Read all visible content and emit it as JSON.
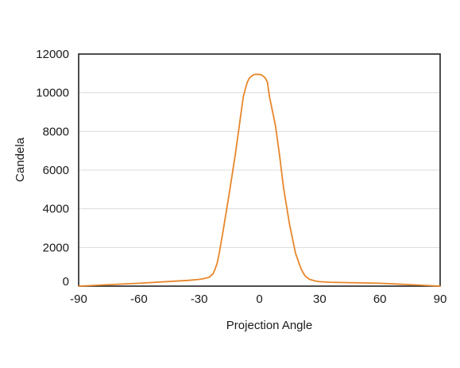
{
  "chart_data": {
    "type": "line",
    "xlabel": "Projection Angle",
    "ylabel": "Candela",
    "xlim": [
      -90,
      90
    ],
    "ylim": [
      0,
      12000
    ],
    "x_ticks": [
      -90,
      -60,
      -30,
      0,
      30,
      60,
      90
    ],
    "y_ticks": [
      0,
      2000,
      4000,
      6000,
      8000,
      10000,
      12000
    ],
    "grid": "horizontal",
    "series": [
      {
        "color": "#E8862A",
        "x": [
          -90,
          -60,
          -35,
          -30,
          -28,
          -25,
          -23,
          -22,
          -21,
          -20,
          -18,
          -15,
          -12,
          -10,
          -8,
          -7,
          -6,
          -5,
          -4,
          -3,
          -2,
          -1,
          0,
          1,
          2,
          3,
          4,
          5,
          6,
          8,
          10,
          12,
          15,
          18,
          20,
          21,
          22,
          23,
          25,
          28,
          30,
          35,
          60,
          90
        ],
        "y": [
          0,
          150,
          300,
          350,
          380,
          460,
          650,
          900,
          1200,
          1700,
          2900,
          4800,
          6800,
          8300,
          9800,
          10200,
          10550,
          10750,
          10850,
          10920,
          10950,
          10950,
          10950,
          10920,
          10850,
          10750,
          10550,
          9800,
          9300,
          8300,
          6800,
          5100,
          3200,
          1700,
          1100,
          850,
          650,
          500,
          350,
          260,
          230,
          200,
          150,
          0
        ]
      }
    ]
  },
  "colors": {
    "series": "#E8862A",
    "grid": "#dcdcdc",
    "frame": "#222222"
  }
}
